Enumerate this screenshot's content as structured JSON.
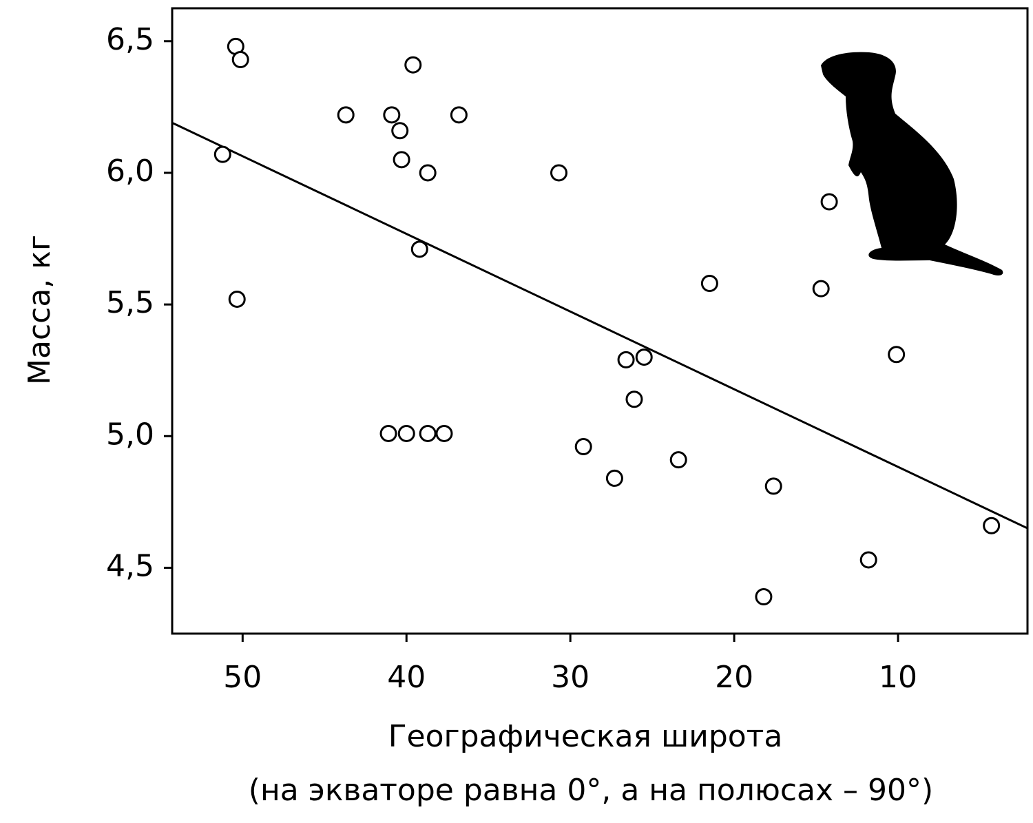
{
  "chart_data": {
    "type": "scatter",
    "x_label": "Географическая широта",
    "x_label_2": "(на экваторе равна 0°, а на полюсах – 90°)",
    "y_label": "Масса, кг",
    "xlim": [
      54.3,
      2.1
    ],
    "ylim": [
      4.25,
      6.625
    ],
    "xticks": [
      50,
      40,
      30,
      20,
      10
    ],
    "yticks": [
      {
        "value": 4.5,
        "label": "4,5"
      },
      {
        "value": 5.0,
        "label": "5,0"
      },
      {
        "value": 5.5,
        "label": "5,5"
      },
      {
        "value": 6.0,
        "label": "6,0"
      },
      {
        "value": 6.5,
        "label": "6,5"
      }
    ],
    "x": [
      50.42,
      50.13,
      51.22,
      50.34,
      43.7,
      39.6,
      40.9,
      40.4,
      40.3,
      38.7,
      36.8,
      39.2,
      30.7,
      41.1,
      40.0,
      38.7,
      37.7,
      29.2,
      27.3,
      26.6,
      25.5,
      26.1,
      23.4,
      21.5,
      18.2,
      17.6,
      14.2,
      14.7,
      10.1,
      11.8,
      4.3
    ],
    "y": [
      6.48,
      6.43,
      6.07,
      5.52,
      6.22,
      6.41,
      6.22,
      6.16,
      6.05,
      6.0,
      6.22,
      5.71,
      6.0,
      5.01,
      5.01,
      5.01,
      5.01,
      4.96,
      4.84,
      5.29,
      5.3,
      5.14,
      4.91,
      5.58,
      4.39,
      4.81,
      5.89,
      5.56,
      5.31,
      4.53,
      4.66
    ],
    "color": "#000000",
    "trend_line": {
      "x": [
        54.3,
        2.1
      ],
      "y": [
        6.19,
        4.65
      ]
    }
  }
}
